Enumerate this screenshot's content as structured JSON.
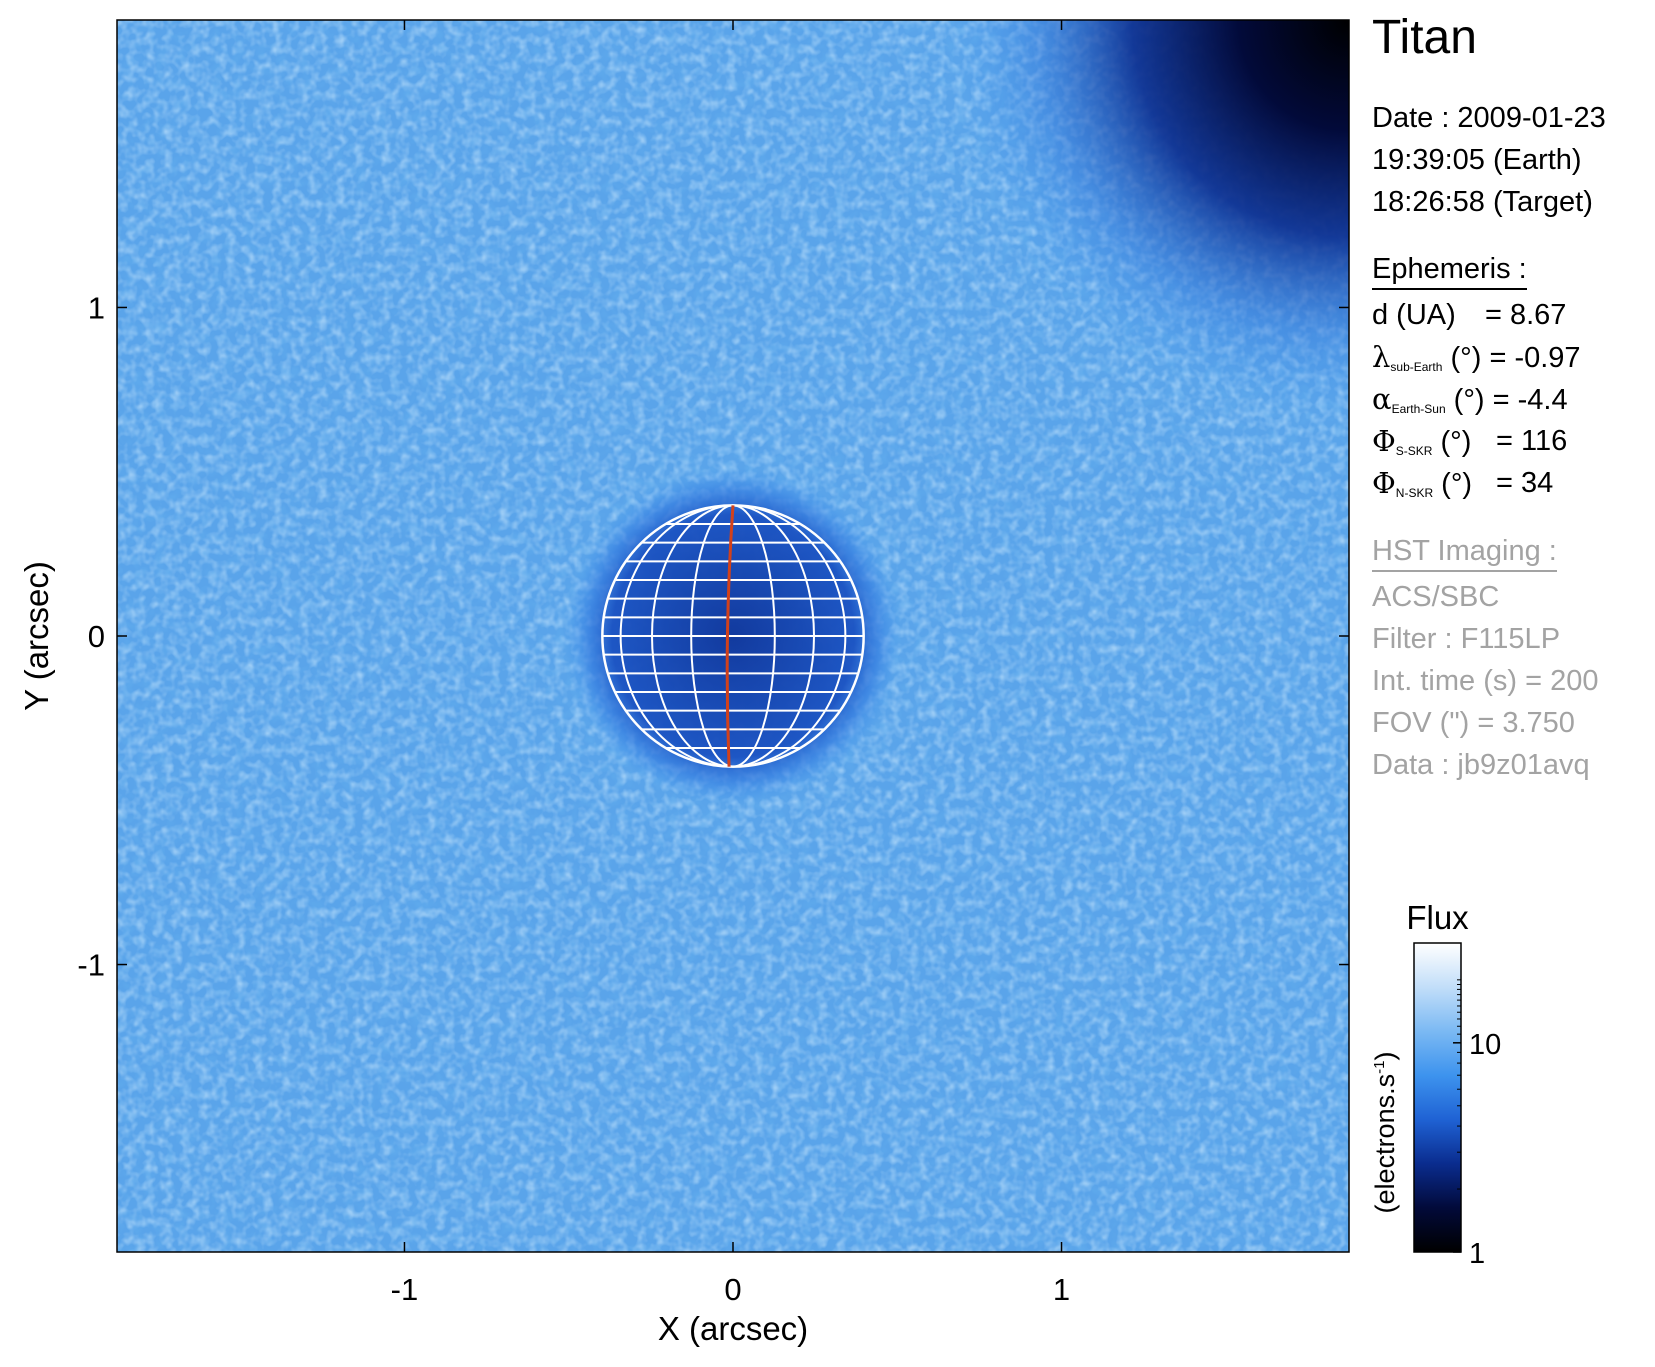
{
  "chart_data": {
    "type": "heatmap",
    "title": "Titan",
    "xlabel": "X (arcsec)",
    "ylabel": "Y (arcsec)",
    "xlim": [
      -1.875,
      1.875
    ],
    "ylim": [
      -1.875,
      1.875
    ],
    "xticks": [
      "-1",
      "0",
      "1"
    ],
    "yticks": [
      "1",
      "0",
      "-1"
    ],
    "tick_values": [
      -1,
      0,
      1
    ],
    "colorbar": {
      "title": "Flux",
      "label": "(electrons.s",
      "label_sup": "-1",
      "label_end": ")",
      "scale": "log",
      "range": [
        1,
        30
      ],
      "ticks": [
        "10",
        "1"
      ],
      "tick_values": [
        10,
        1
      ]
    },
    "planet": {
      "center": [
        0,
        0
      ],
      "radius_arcsec": 0.41,
      "grid_color": "#ffffff",
      "meridian_color": "#d2411b"
    },
    "colormap": [
      "#000000",
      "#020a3a",
      "#0a2c8e",
      "#1f62d4",
      "#3d93ee",
      "#7bb9f3",
      "#c2def9",
      "#ffffff"
    ]
  },
  "info": {
    "date": "Date : 2009-01-23",
    "earth_time": "19:39:05 (Earth)",
    "target_time": "18:26:58 (Target)",
    "ephemeris_header": "Ephemeris :",
    "d_label": "d (UA)",
    "d_value": "= 8.67",
    "lambda_symbol": "λ",
    "lambda_sub": "sub-Earth",
    "lambda_rest": " (°) = -0.97",
    "alpha_symbol": "α",
    "alpha_sub": "Earth-Sun",
    "alpha_rest": " (°) = -4.4",
    "phis_symbol": "Φ",
    "phis_sub": "S-SKR",
    "phis_rest": " (°)",
    "phis_value": "= 116",
    "phin_symbol": "Φ",
    "phin_sub": "N-SKR",
    "phin_rest": " (°)",
    "phin_value": "= 34",
    "hst_header": "HST Imaging :",
    "instrument": "ACS/SBC",
    "filter": "Filter : F115LP",
    "int_time": "Int. time (s) = 200",
    "fov": "FOV (\") = 3.750",
    "data_id": "Data : jb9z01avq"
  }
}
